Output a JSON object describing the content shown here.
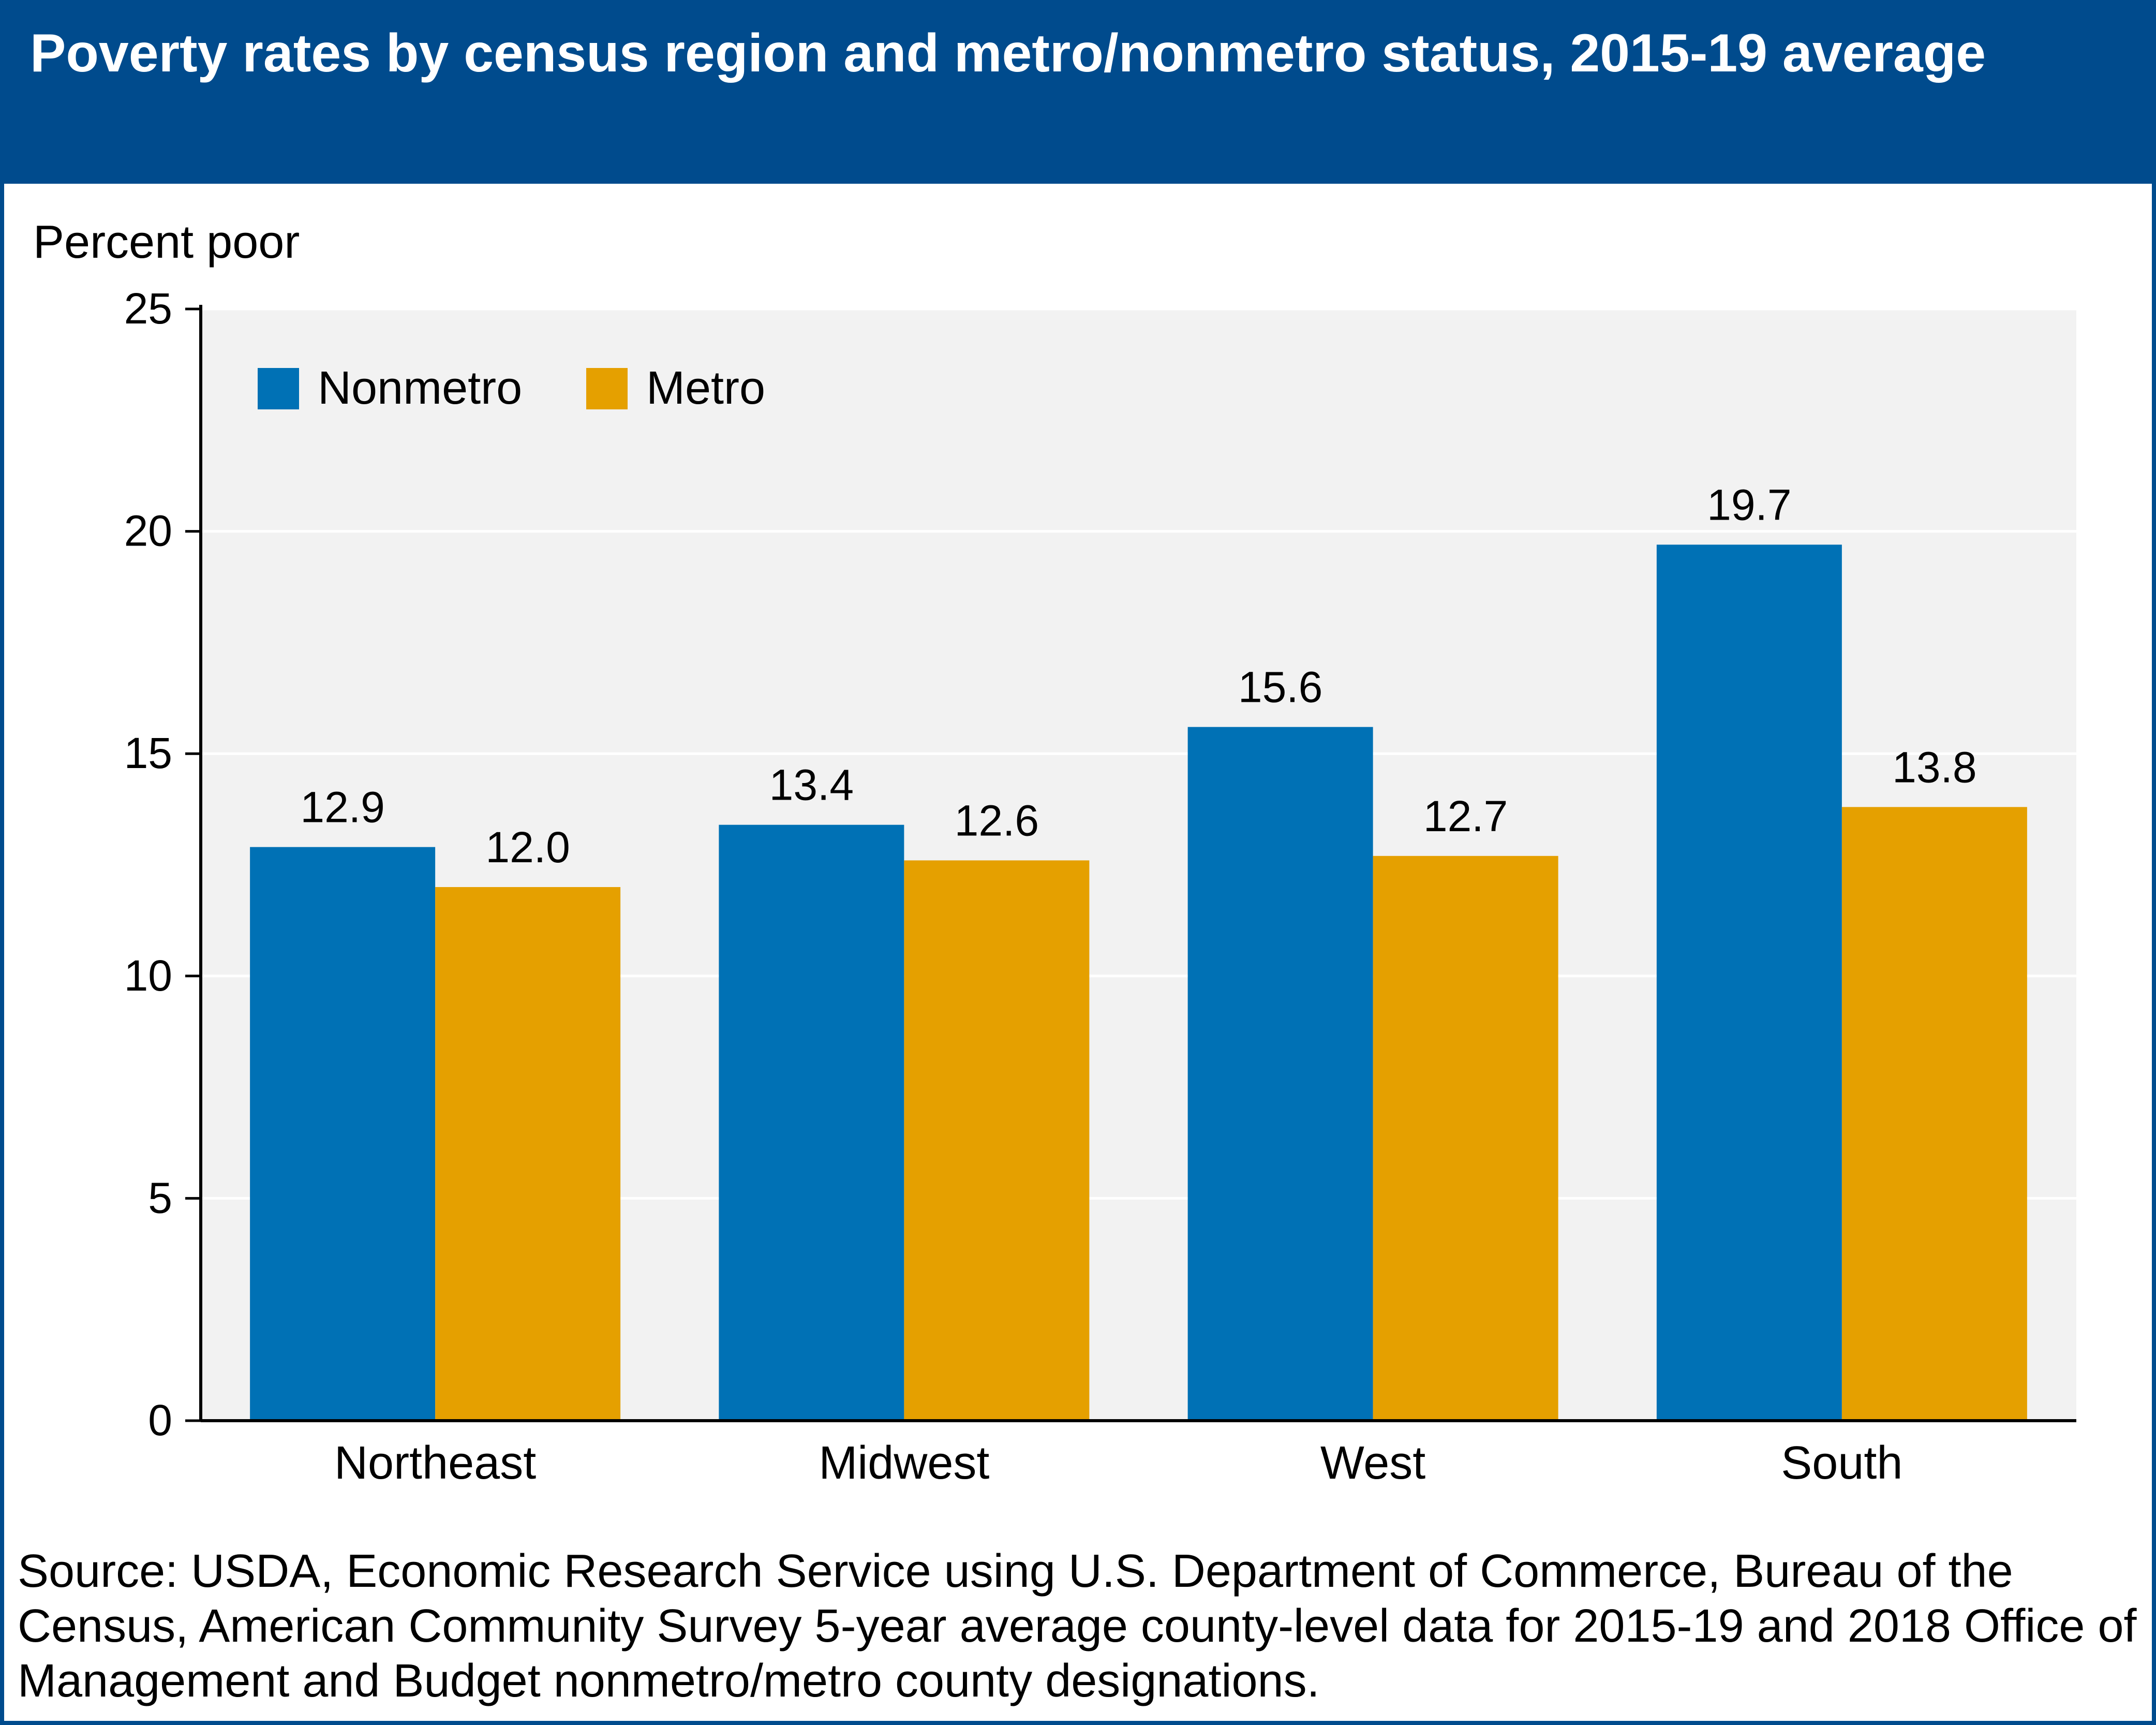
{
  "header": {
    "title": "Poverty rates by census region and metro/nonmetro status, 2015-19 average"
  },
  "source": "Source: USDA, Economic Research Service using U.S. Department of Commerce, Bureau of the Census, American Community Survey 5-year average county-level data for 2015-19 and 2018 Office of Management and Budget nonmetro/metro county designations.",
  "colors": {
    "header_bg": "#004b8d",
    "plot_bg": "#f2f2f2",
    "gridline": "#ffffff",
    "nonmetro": "#0071b5",
    "metro": "#e5a000"
  },
  "chart_data": {
    "type": "bar",
    "ylabel": "Percent poor",
    "xlabel": "",
    "ylim": [
      0,
      25
    ],
    "yticks": [
      0,
      5,
      10,
      15,
      20,
      25
    ],
    "grid": true,
    "legend_position": "top-left",
    "categories": [
      "Northeast",
      "Midwest",
      "West",
      "South"
    ],
    "series": [
      {
        "name": "Nonmetro",
        "color": "#0071b5",
        "values": [
          12.9,
          13.4,
          15.6,
          19.7
        ],
        "labels": [
          "12.9",
          "13.4",
          "15.6",
          "19.7"
        ]
      },
      {
        "name": "Metro",
        "color": "#e5a000",
        "values": [
          12.0,
          12.6,
          12.7,
          13.8
        ],
        "labels": [
          "12.0",
          "12.6",
          "12.7",
          "13.8"
        ]
      }
    ]
  }
}
